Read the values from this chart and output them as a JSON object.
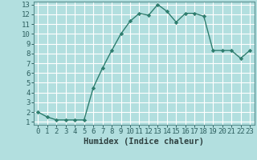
{
  "x": [
    0,
    1,
    2,
    3,
    4,
    5,
    6,
    7,
    8,
    9,
    10,
    11,
    12,
    13,
    14,
    15,
    16,
    17,
    18,
    19,
    20,
    21,
    22,
    23
  ],
  "y": [
    2,
    1.5,
    1.2,
    1.2,
    1.2,
    1.2,
    4.5,
    6.5,
    8.3,
    10.0,
    11.3,
    12.1,
    11.9,
    13.0,
    12.3,
    11.2,
    12.1,
    12.1,
    11.8,
    8.3,
    8.3,
    8.3,
    7.5,
    8.3
  ],
  "line_color": "#2e7d6e",
  "marker": "D",
  "marker_size": 2.2,
  "bg_color": "#b2dfdf",
  "grid_color": "#ffffff",
  "xlabel": "Humidex (Indice chaleur)",
  "ylim_min": 1,
  "ylim_max": 13,
  "xlim_min": 0,
  "xlim_max": 23,
  "yticks": [
    1,
    2,
    3,
    4,
    5,
    6,
    7,
    8,
    9,
    10,
    11,
    12,
    13
  ],
  "xticks": [
    0,
    1,
    2,
    3,
    4,
    5,
    6,
    7,
    8,
    9,
    10,
    11,
    12,
    13,
    14,
    15,
    16,
    17,
    18,
    19,
    20,
    21,
    22,
    23
  ],
  "xlabel_fontsize": 7.5,
  "tick_fontsize": 6.5,
  "line_width": 1.0
}
